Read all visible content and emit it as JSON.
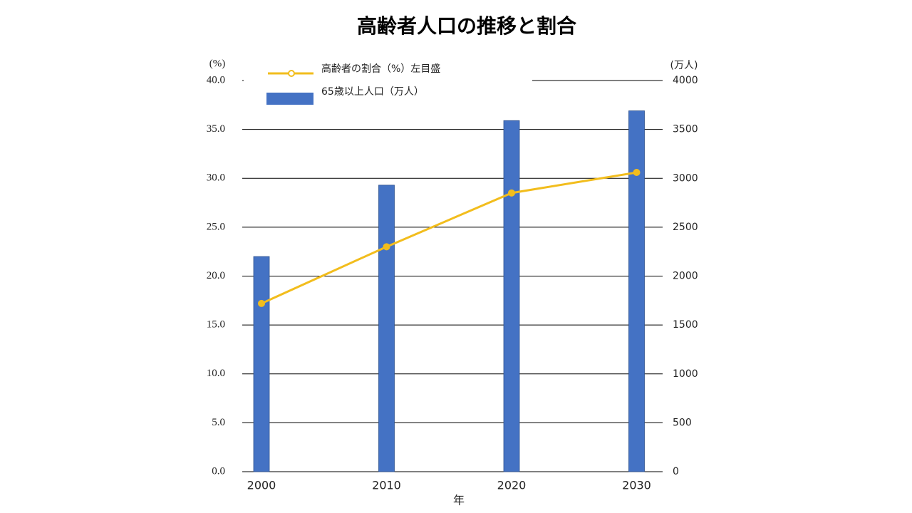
{
  "chart_data": {
    "type": "bar",
    "title": "高齢者人口の推移と割合",
    "x_label": "年",
    "y_label": "(%)",
    "y2_label": "(万人)",
    "categories": [
      "2000",
      "2010",
      "2020",
      "2030"
    ],
    "series": [
      {
        "name": "高齢者の割合（%）左目盛",
        "type": "line",
        "color": "#f2bd1d",
        "values": [
          17.2,
          23.0,
          28.5,
          30.6
        ]
      },
      {
        "name": "65歳以上人口（万人）",
        "type": "bar",
        "axis": "y2",
        "color": "#4472c4",
        "values": [
          2200,
          2930,
          3590,
          3690
        ]
      }
    ],
    "ylim": [
      0,
      40
    ],
    "yticks": [
      {
        "value": 0,
        "label": "0.0"
      },
      {
        "value": 5,
        "label": "5.0"
      },
      {
        "value": 10,
        "label": "10.0"
      },
      {
        "value": 15,
        "label": "15.0"
      },
      {
        "value": 20,
        "label": "20.0"
      },
      {
        "value": 25,
        "label": "25.0"
      },
      {
        "value": 30,
        "label": "30.0"
      },
      {
        "value": 35,
        "label": "35.0"
      },
      {
        "value": 40,
        "label": "40.0"
      }
    ],
    "y2lim": [
      0,
      4000
    ],
    "y2ticks": [
      0,
      500,
      1000,
      1500,
      2000,
      2500,
      3000,
      3500,
      4000
    ],
    "grid": true
  }
}
